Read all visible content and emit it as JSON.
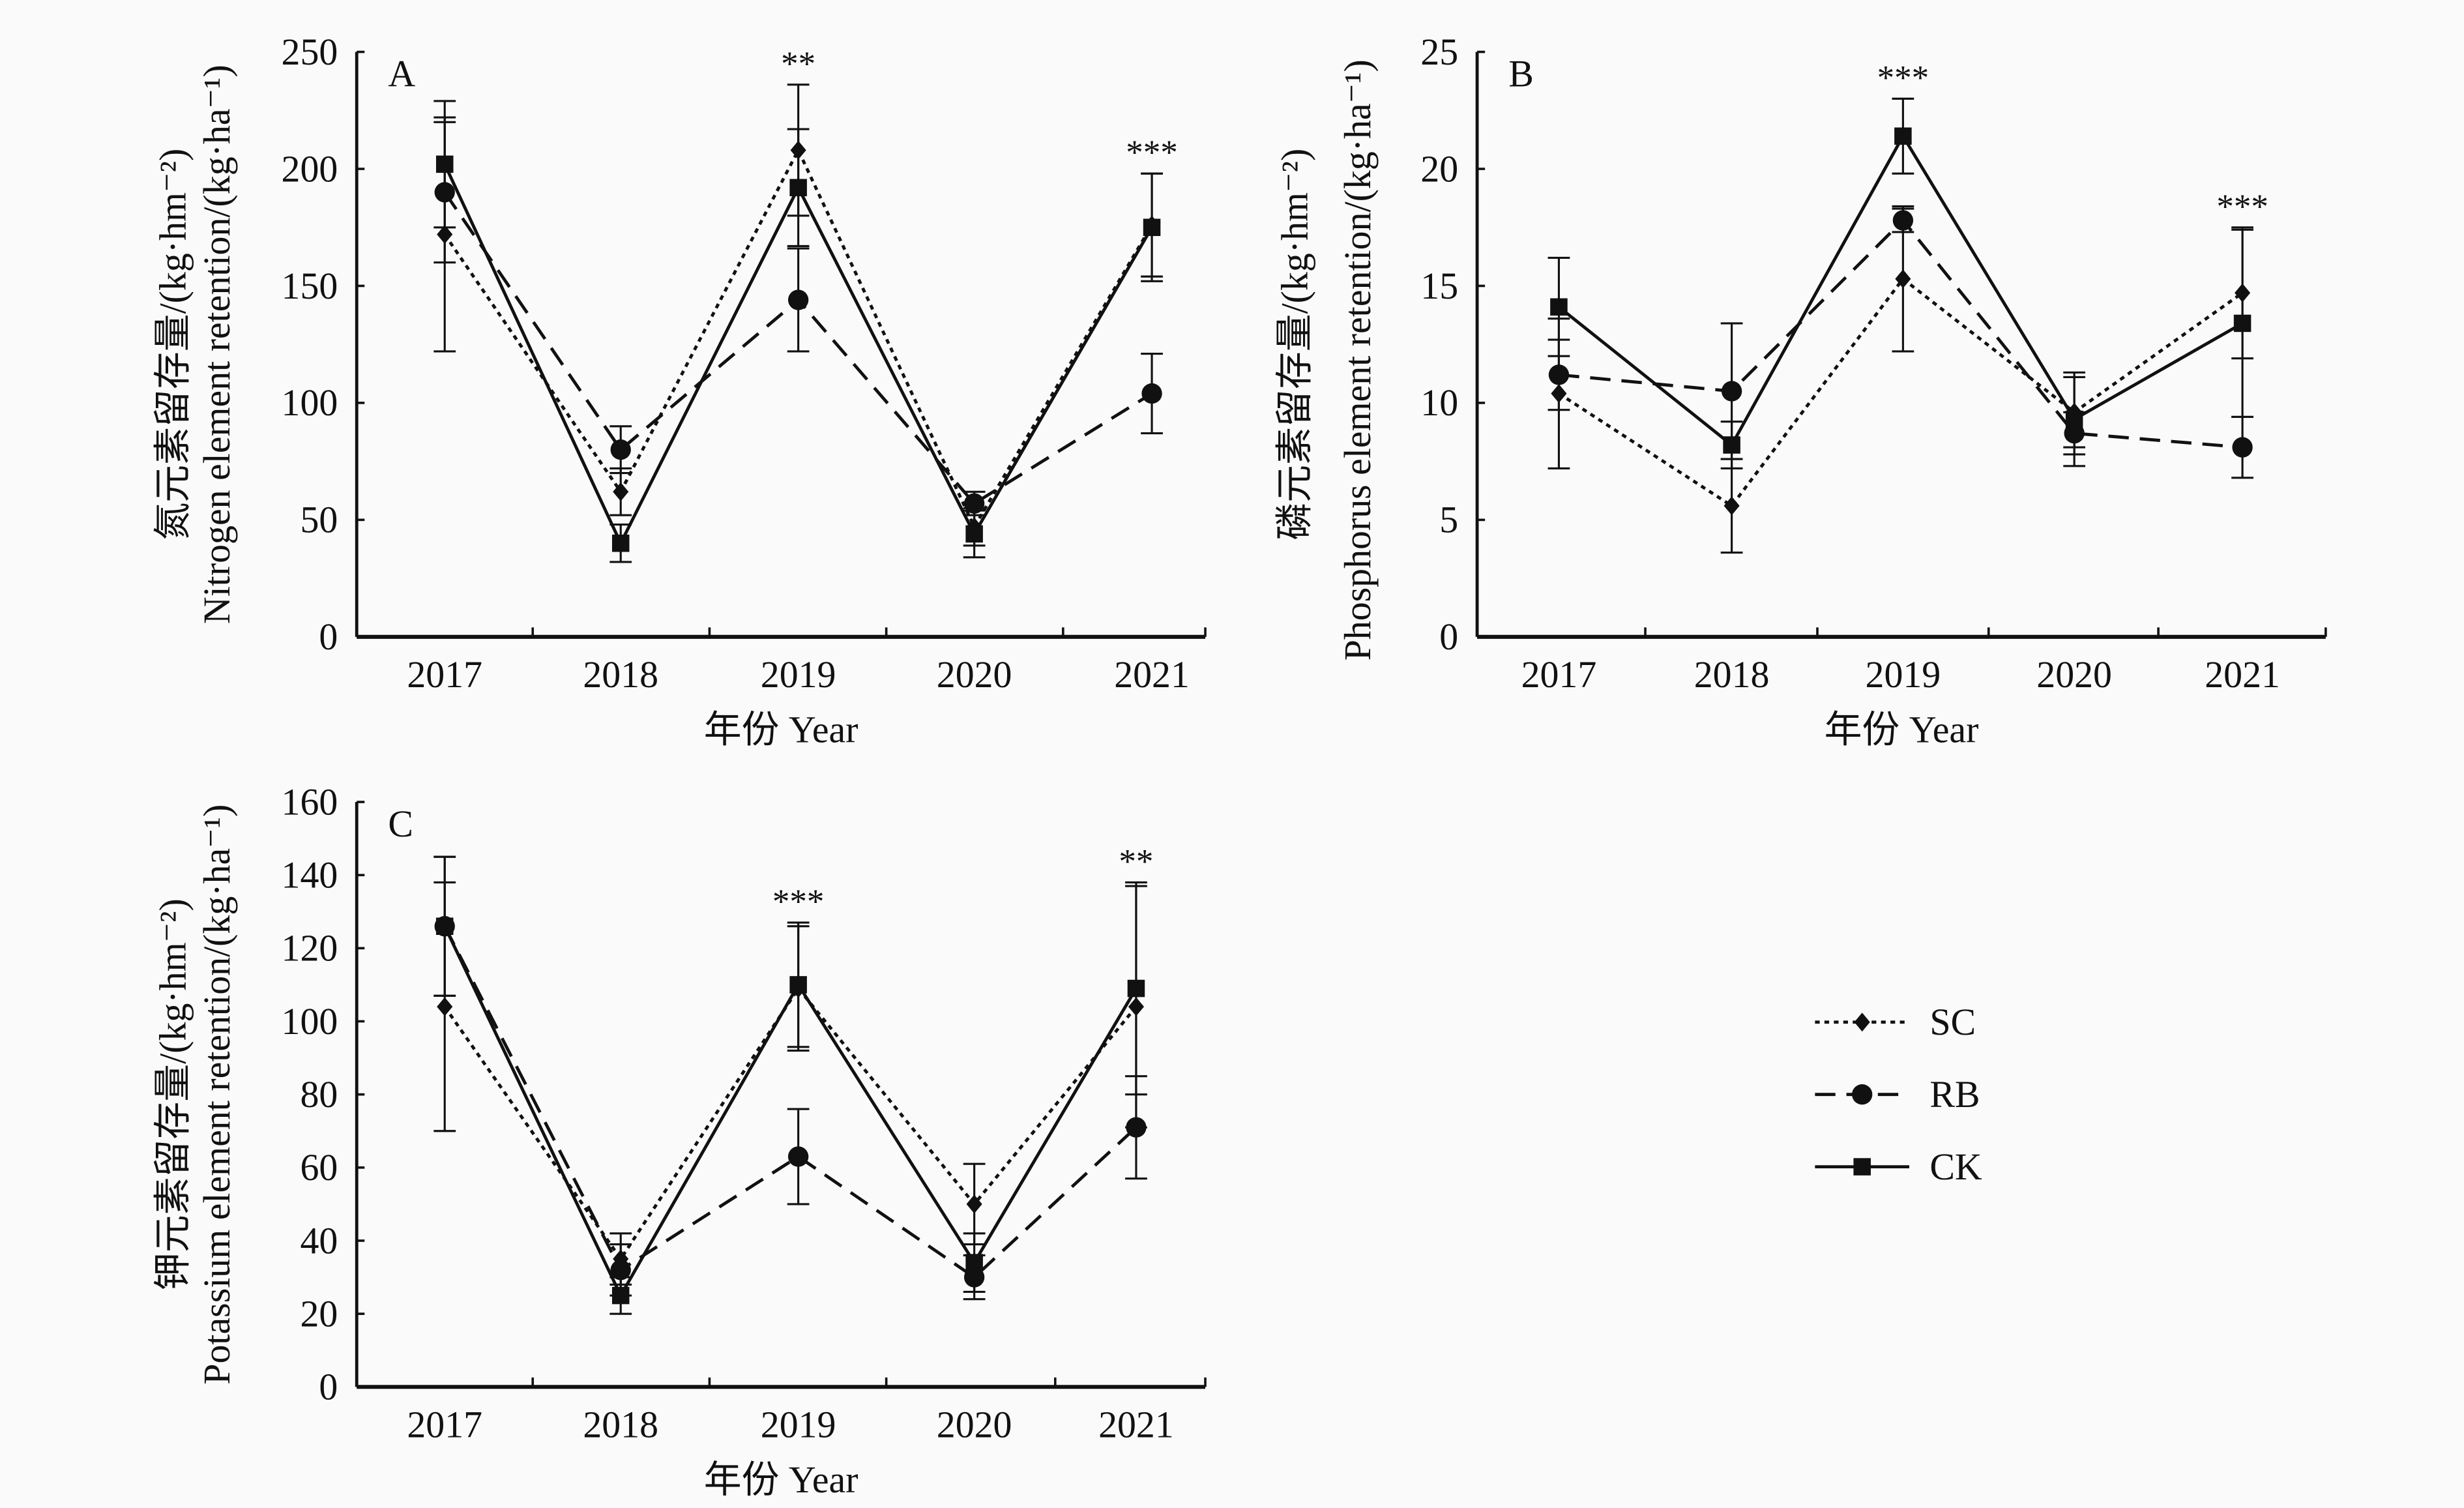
{
  "chart_data": [
    {
      "type": "line",
      "panel_label": "A",
      "categories": [
        "2017",
        "2018",
        "2019",
        "2020",
        "2021"
      ],
      "xlabel": "年份 Year",
      "ylabel_cn": "氮元素留存量/(kg·hm⁻²)",
      "ylabel_en": "Nitrogen element retention/(kg·ha⁻¹)",
      "ylim": [
        0,
        250
      ],
      "yticks": [
        0,
        50,
        100,
        150,
        200,
        250
      ],
      "series": [
        {
          "name": "SC",
          "values": [
            172,
            62,
            208,
            47,
            176
          ],
          "err": [
            50,
            10,
            28,
            8,
            22
          ]
        },
        {
          "name": "RB",
          "values": [
            190,
            80,
            144,
            57,
            104
          ],
          "err": [
            30,
            10,
            22,
            5,
            17
          ]
        },
        {
          "name": "CK",
          "values": [
            202,
            40,
            192,
            44,
            175
          ],
          "err": [
            27,
            8,
            25,
            10,
            23
          ]
        }
      ],
      "annotations": [
        {
          "category": "2019",
          "text": "**"
        },
        {
          "category": "2021",
          "text": "***"
        }
      ]
    },
    {
      "type": "line",
      "panel_label": "B",
      "categories": [
        "2017",
        "2018",
        "2019",
        "2020",
        "2021"
      ],
      "xlabel": "年份 Year",
      "ylabel_cn": "磷元素留存量/(kg·hm⁻²)",
      "ylabel_en": "Phosphorus element retention/(kg·ha⁻¹)",
      "ylim": [
        0,
        25
      ],
      "yticks": [
        0,
        5,
        10,
        15,
        20,
        25
      ],
      "series": [
        {
          "name": "SC",
          "values": [
            10.4,
            5.6,
            15.3,
            9.6,
            14.7
          ],
          "err": [
            3.2,
            2.0,
            3.1,
            1.5,
            2.8
          ]
        },
        {
          "name": "RB",
          "values": [
            11.2,
            10.5,
            17.8,
            8.7,
            8.1
          ],
          "err": [
            1.5,
            2.9,
            0.5,
            0.9,
            1.3
          ]
        },
        {
          "name": "CK",
          "values": [
            14.1,
            8.2,
            21.4,
            9.3,
            13.4
          ],
          "err": [
            2.1,
            1.0,
            1.6,
            2.0,
            4.0
          ]
        }
      ],
      "annotations": [
        {
          "category": "2019",
          "text": "***"
        },
        {
          "category": "2021",
          "text": "***"
        }
      ]
    },
    {
      "type": "line",
      "panel_label": "C",
      "categories": [
        "2017",
        "2018",
        "2019",
        "2020",
        "2021"
      ],
      "xlabel": "年份 Year",
      "ylabel_cn": "钾元素留存量/(kg·hm⁻²)",
      "ylabel_en": "Potassium element retention/(kg·ha⁻¹)",
      "ylim": [
        0,
        160
      ],
      "yticks": [
        0,
        20,
        40,
        60,
        80,
        100,
        120,
        140,
        160
      ],
      "series": [
        {
          "name": "SC",
          "values": [
            104,
            35,
            109,
            50,
            104
          ],
          "err": [
            34,
            7,
            17,
            11,
            33
          ]
        },
        {
          "name": "RB",
          "values": [
            126,
            32,
            63,
            30,
            71
          ],
          "err": [
            19,
            7,
            13,
            6,
            14
          ]
        },
        {
          "name": "CK",
          "values": [
            126,
            25,
            110,
            34,
            109
          ],
          "err": [
            19,
            5,
            17,
            8,
            29
          ]
        }
      ],
      "annotations": [
        {
          "category": "2019",
          "text": "***"
        },
        {
          "category": "2021",
          "text": "**"
        }
      ]
    }
  ],
  "legend": {
    "placement": "right-bottom",
    "items": [
      {
        "name": "SC",
        "style": "dotted",
        "marker": "diamond"
      },
      {
        "name": "RB",
        "style": "dashed",
        "marker": "circle"
      },
      {
        "name": "CK",
        "style": "solid",
        "marker": "square"
      }
    ]
  },
  "colors": {
    "ink": "#111111",
    "background": "#fafafa"
  }
}
